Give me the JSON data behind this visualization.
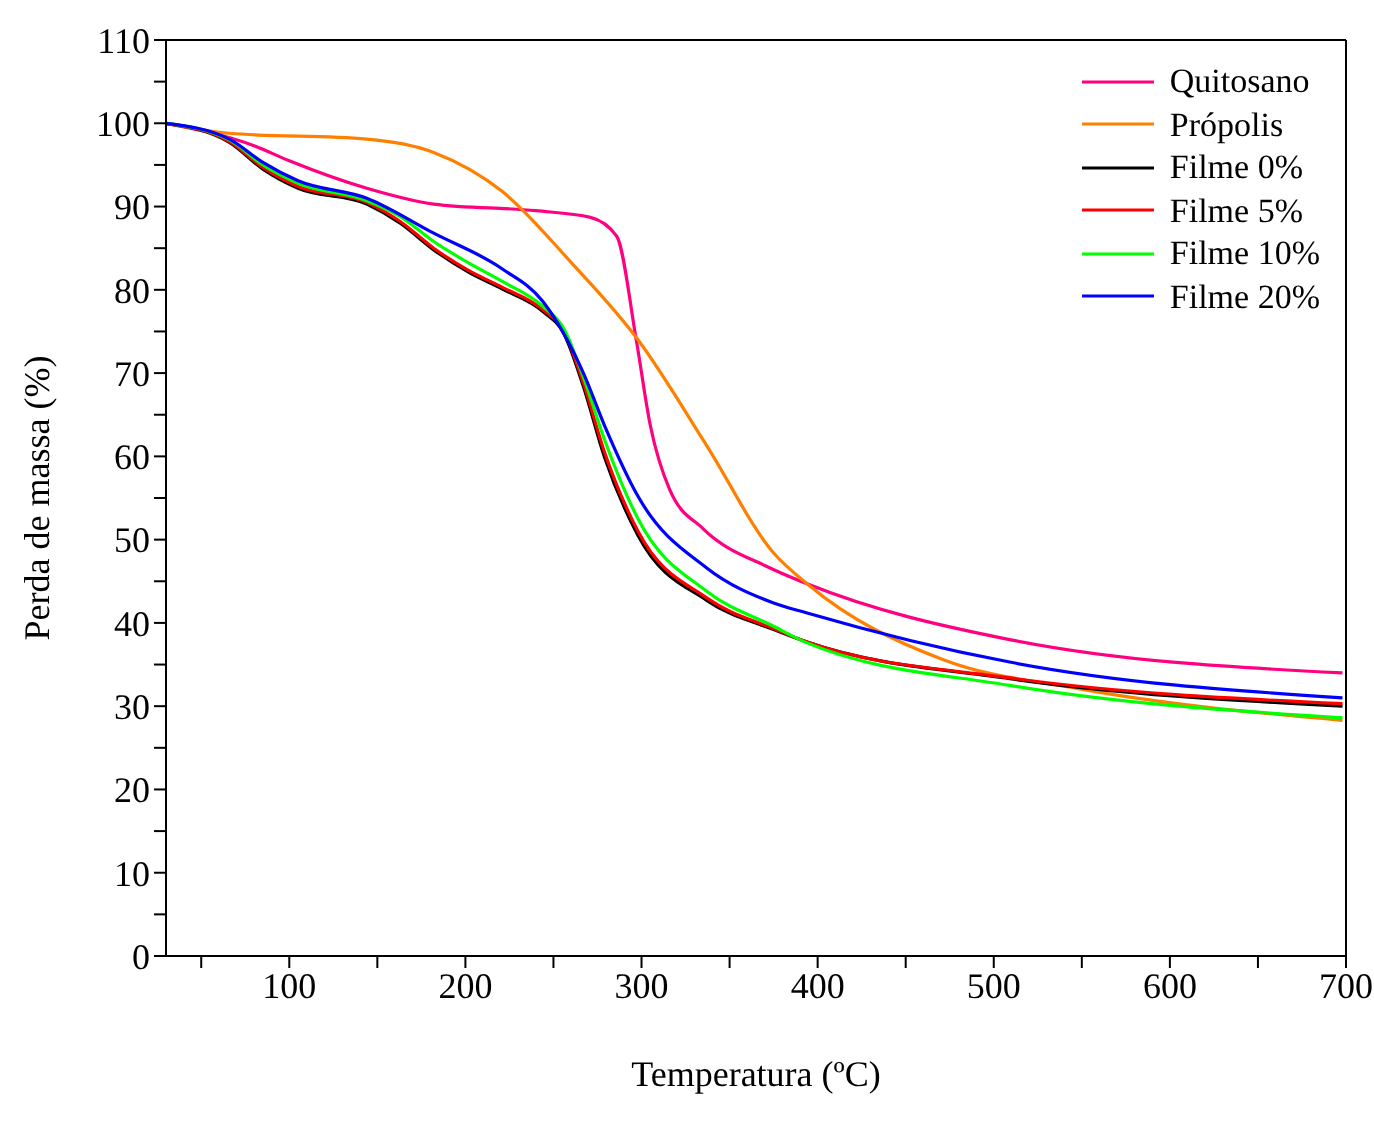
{
  "chart_data": {
    "type": "line",
    "xlabel": "Temperatura (ºC)",
    "ylabel": "Perda de massa (%)",
    "xlim": [
      30,
      700
    ],
    "xticks": [
      {
        "value": 50,
        "label": null
      },
      100,
      {
        "value": 150,
        "label": null
      },
      200,
      {
        "value": 250,
        "label": null
      },
      300,
      {
        "value": 350,
        "label": null
      },
      400,
      {
        "value": 450,
        "label": null
      },
      500,
      {
        "value": 550,
        "label": null
      },
      600,
      {
        "value": 650,
        "label": null
      },
      700
    ],
    "ylim": [
      0,
      110
    ],
    "yticks": [
      0,
      {
        "value": 5,
        "label": null
      },
      10,
      {
        "value": 15,
        "label": null
      },
      20,
      {
        "value": 25,
        "label": null
      },
      30,
      {
        "value": 35,
        "label": null
      },
      40,
      {
        "value": 45,
        "label": null
      },
      50,
      {
        "value": 55,
        "label": null
      },
      60,
      {
        "value": 65,
        "label": null
      },
      70,
      {
        "value": 75,
        "label": null
      },
      80,
      {
        "value": 85,
        "label": null
      },
      90,
      {
        "value": 95,
        "label": null
      },
      100,
      {
        "value": 105,
        "label": null
      },
      110
    ],
    "grid": false,
    "legend": "top right",
    "marker": "none",
    "line_style": "solid",
    "series": [
      {
        "name": "Quitosano",
        "color": "#ff0080",
        "x": [
          30,
          80,
          100,
          144,
          182,
          240,
          271,
          286,
          297,
          305,
          316,
          335,
          373,
          394,
          509,
          698
        ],
        "values": [
          100,
          97.3,
          95.5,
          92.2,
          90.3,
          89.5,
          88.7,
          86.4,
          74,
          63.7,
          56,
          51.3,
          46.6,
          44.7,
          38,
          34
        ]
      },
      {
        "name": "Própolis",
        "color": "#ff8000",
        "x": [
          30,
          66,
          144,
          182,
          221,
          260,
          298,
          337,
          375,
          394,
          471,
          548,
          698
        ],
        "values": [
          100,
          98.8,
          98.1,
          96.5,
          91.8,
          83.3,
          74,
          61.3,
          48.4,
          44.7,
          35.6,
          32.1,
          28.3
        ]
      },
      {
        "name": "Filme 0%",
        "color": "#000000",
        "x": [
          30,
          66,
          85,
          105,
          144,
          163,
          182,
          202,
          221,
          244,
          256,
          267,
          279,
          298,
          337,
          375,
          394,
          509,
          698
        ],
        "values": [
          100,
          97.7,
          94.5,
          92.2,
          90.3,
          88,
          84.8,
          82.1,
          80.1,
          77.4,
          74.7,
          68.4,
          59.9,
          50.5,
          42.7,
          39.2,
          37.7,
          33.3,
          30
        ]
      },
      {
        "name": "Filme 5%",
        "color": "#ff0000",
        "x": [
          30,
          66,
          85,
          105,
          144,
          163,
          182,
          202,
          221,
          244,
          256,
          267,
          279,
          298,
          337,
          375,
          394,
          509,
          698
        ],
        "values": [
          100,
          97.8,
          94.7,
          92.4,
          90.5,
          88.2,
          85,
          82.3,
          80.3,
          77.6,
          75,
          68.8,
          60.5,
          51,
          43,
          39.3,
          37.7,
          33.4,
          30.3
        ]
      },
      {
        "name": "Filme 10%",
        "color": "#00ff00",
        "x": [
          30,
          66,
          85,
          105,
          144,
          163,
          182,
          202,
          221,
          244,
          256,
          267,
          279,
          298,
          337,
          375,
          394,
          509,
          698
        ],
        "values": [
          100,
          98,
          95,
          92.8,
          90.7,
          88.8,
          85.8,
          83.2,
          81,
          78,
          75.3,
          69.5,
          62,
          52.5,
          43.8,
          39.6,
          37.6,
          32.5,
          28.6
        ]
      },
      {
        "name": "Filme 20%",
        "color": "#0000ff",
        "x": [
          30,
          66,
          85,
          105,
          144,
          182,
          221,
          244,
          256,
          267,
          279,
          298,
          337,
          375,
          394,
          509,
          698
        ],
        "values": [
          100,
          98.1,
          95.3,
          93.1,
          91,
          86.8,
          82.5,
          78.6,
          74.7,
          70,
          63.7,
          55.2,
          46.6,
          42.4,
          41.2,
          35.3,
          31
        ]
      }
    ]
  }
}
